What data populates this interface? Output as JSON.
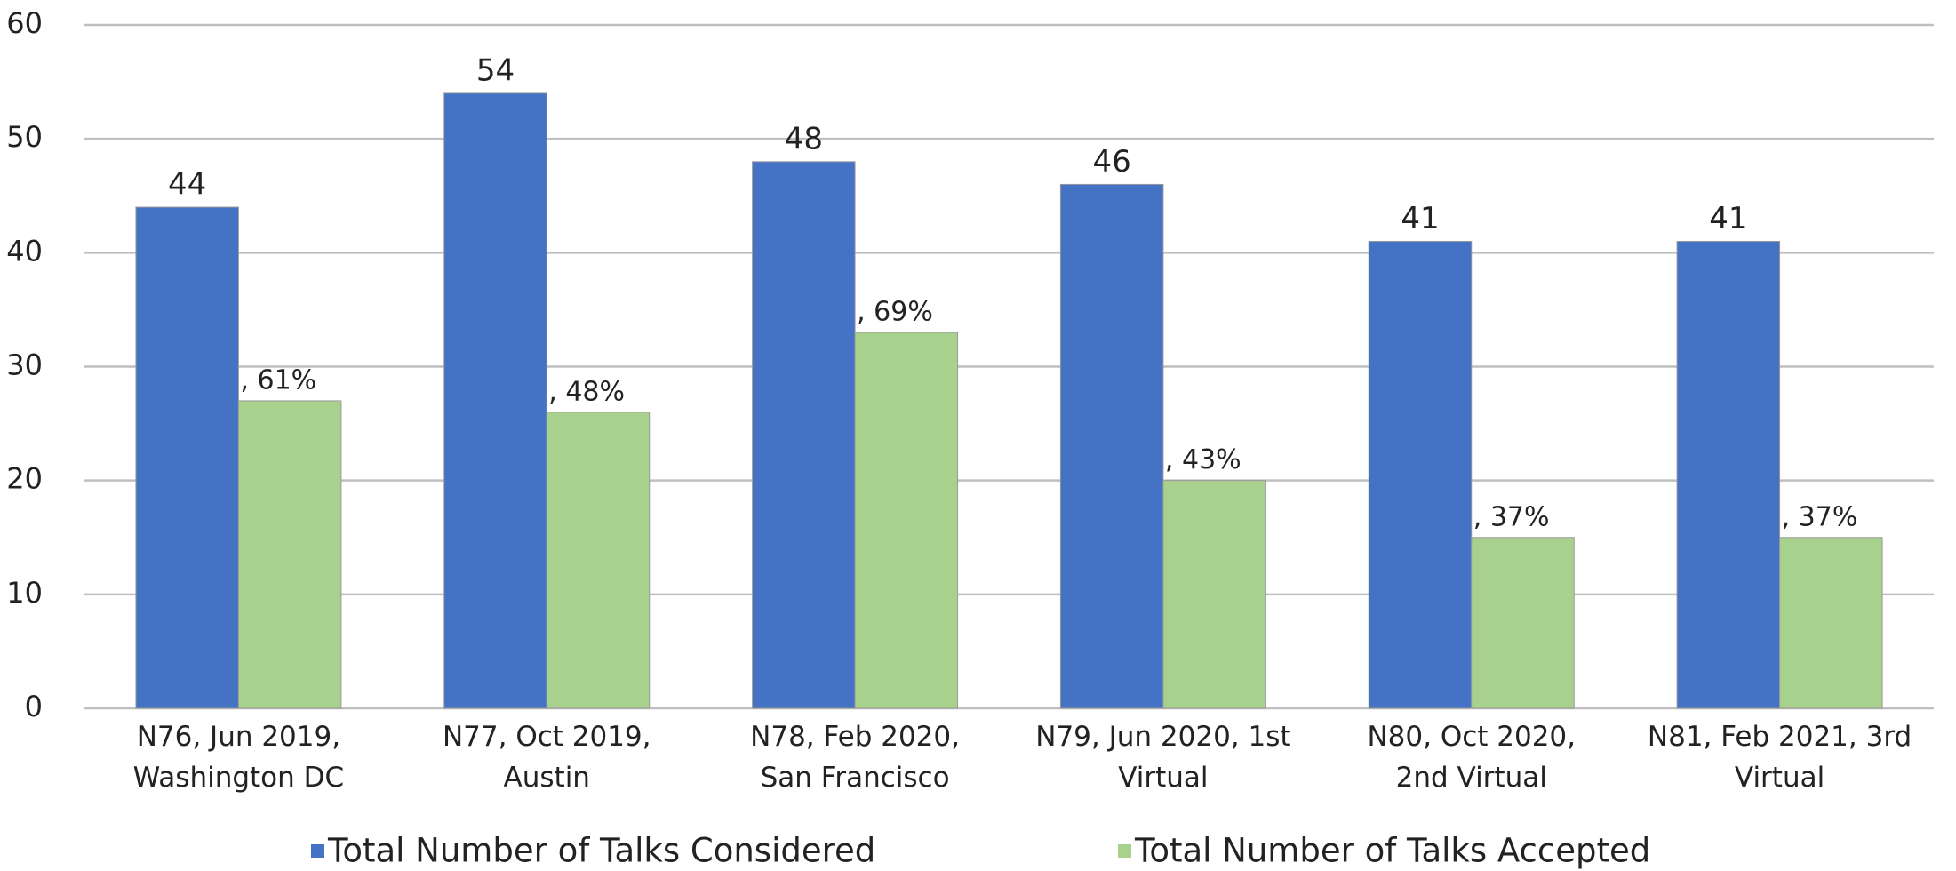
{
  "chart_data": {
    "type": "bar",
    "categories": [
      "N76, Jun 2019,\nWashington DC",
      "N77, Oct 2019,\nAustin",
      "N78, Feb 2020,\nSan Francisco",
      "N79, Jun 2020, 1st\nVirtual",
      "N80, Oct 2020,\n2nd Virtual",
      "N81, Feb 2021, 3rd\nVirtual"
    ],
    "series": [
      {
        "name": "Total Number of Talks Considered",
        "color": "#4472c4",
        "values": [
          44,
          54,
          48,
          46,
          41,
          41
        ]
      },
      {
        "name": "Total Number of Talks Accepted",
        "color": "#a9d18e",
        "values": [
          27,
          26,
          33,
          20,
          15,
          15
        ],
        "data_labels": [
          ", 61%",
          ", 48%",
          ", 69%",
          ", 43%",
          ", 37%",
          ", 37%"
        ]
      }
    ],
    "ylim": [
      0,
      60
    ],
    "yticks": [
      0,
      10,
      20,
      30,
      40,
      50,
      60
    ],
    "grid": true,
    "legend": "bottom"
  }
}
